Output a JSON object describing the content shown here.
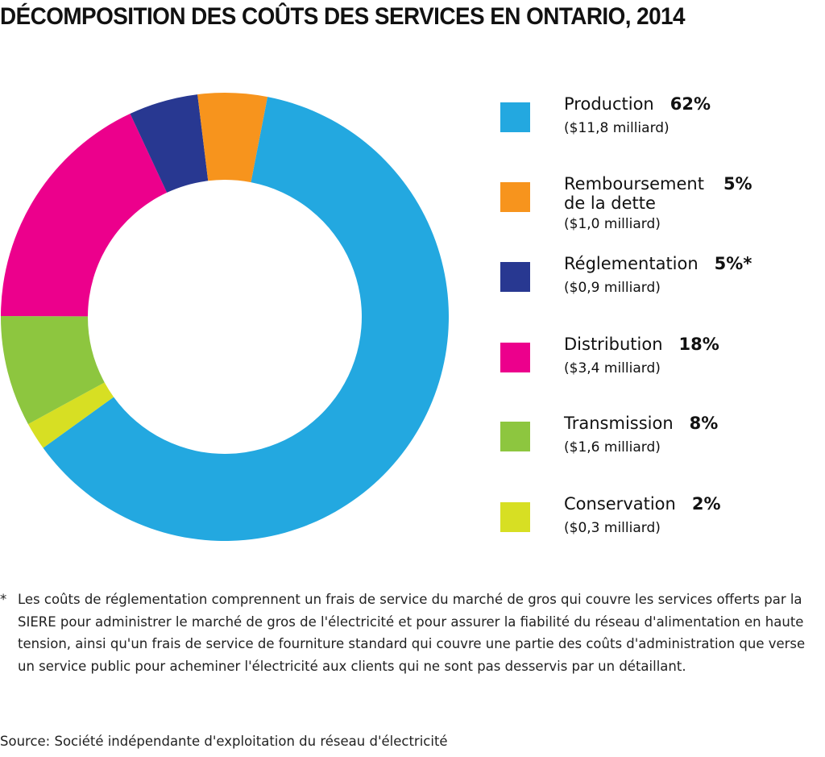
{
  "chart_data": {
    "type": "pie",
    "donut": true,
    "title": "DÉCOMPOSITION DES COÛTS DES SERVICES EN ONTARIO, 2014",
    "legend_position": "right",
    "slices": [
      {
        "label": "Production",
        "percent": 62,
        "percent_label": "62%",
        "amount": "($11,8 milliard)",
        "color": "#23a8e0"
      },
      {
        "label": "Conservation",
        "percent": 2,
        "percent_label": "2%",
        "amount": "($0,3 milliard)",
        "color": "#d7df23"
      },
      {
        "label": "Transmission",
        "percent": 8,
        "percent_label": "8%",
        "amount": "($1,6 milliard)",
        "color": "#8dc63f"
      },
      {
        "label": "Distribution",
        "percent": 18,
        "percent_label": "18%",
        "amount": "($3,4 milliard)",
        "color": "#ec008c"
      },
      {
        "label": "Réglementation",
        "percent": 5,
        "percent_label": "5%*",
        "amount": "($0,9 milliard)",
        "color": "#283891"
      },
      {
        "label": "Remboursement de la dette",
        "label_lines": [
          "Remboursement",
          "de la dette"
        ],
        "percent": 5,
        "percent_label": "5%",
        "amount": "($1,0 milliard)",
        "color": "#f7941d"
      }
    ],
    "legend_order": [
      0,
      5,
      4,
      3,
      2,
      1
    ]
  },
  "footnote": {
    "marker": "*",
    "text": "Les coûts de réglementation comprennent un frais de service du marché de gros qui couvre les services offerts par la SIERE pour administrer le marché de gros de l'électricité et pour assurer la fiabilité du réseau d'alimentation en haute tension, ainsi qu'un frais de service de fourniture standard qui couvre une partie des coûts d'administration que verse un service public pour acheminer l'électricité aux clients qui ne sont pas desservis par un détaillant."
  },
  "source": "Source: Société indépendante d'exploitation du réseau d'électricité"
}
